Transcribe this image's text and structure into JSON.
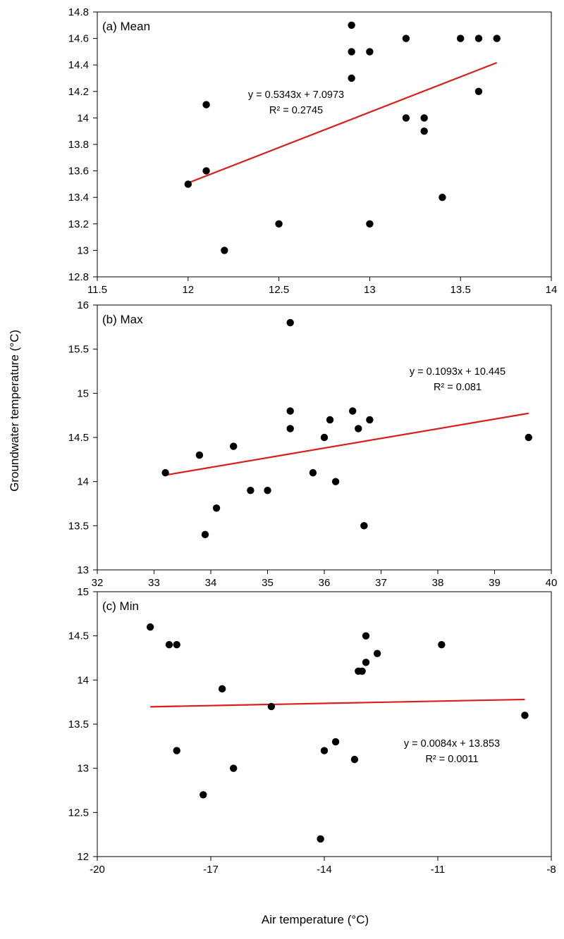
{
  "figure": {
    "ylabel": "Groundwater temperature (°C)",
    "xlabel": "Air temperature (°C)"
  },
  "colors": {
    "points": "#000000",
    "trendline": "#d81e1e",
    "axes": "#000000"
  },
  "chart_data": [
    {
      "type": "scatter",
      "panel_label": "(a) Mean",
      "xlim": [
        11.5,
        14
      ],
      "ylim": [
        12.8,
        14.8
      ],
      "x_ticks": [
        11.5,
        12,
        12.5,
        13,
        13.5,
        14
      ],
      "x_tick_labels": [
        "11.5",
        "12",
        "12.5",
        "13",
        "13.5",
        "14"
      ],
      "y_ticks": [
        12.8,
        13,
        13.2,
        13.4,
        13.6,
        13.8,
        14,
        14.2,
        14.4,
        14.6,
        14.8
      ],
      "y_tick_labels": [
        "12.8",
        "13",
        "13.2",
        "13.4",
        "13.6",
        "13.8",
        "14",
        "14.2",
        "14.4",
        "14.6",
        "14.8"
      ],
      "grid": false,
      "points": [
        [
          12.0,
          13.5
        ],
        [
          12.1,
          14.1
        ],
        [
          12.1,
          13.6
        ],
        [
          12.2,
          13.0
        ],
        [
          12.5,
          13.2
        ],
        [
          12.9,
          14.7
        ],
        [
          12.9,
          14.5
        ],
        [
          12.9,
          14.3
        ],
        [
          13.0,
          14.5
        ],
        [
          13.0,
          13.2
        ],
        [
          13.2,
          14.6
        ],
        [
          13.2,
          14.0
        ],
        [
          13.3,
          14.0
        ],
        [
          13.3,
          13.9
        ],
        [
          13.4,
          13.4
        ],
        [
          13.5,
          14.6
        ],
        [
          13.6,
          14.6
        ],
        [
          13.6,
          14.2
        ],
        [
          13.7,
          14.6
        ]
      ],
      "trendline": {
        "slope": 0.5343,
        "intercept": 7.0973,
        "x_range": [
          12.0,
          13.7
        ]
      },
      "equation": "y = 0.5343x + 7.0973",
      "r_squared": "R² = 0.2745"
    },
    {
      "type": "scatter",
      "panel_label": "(b) Max",
      "xlim": [
        32,
        40
      ],
      "ylim": [
        13,
        16
      ],
      "x_ticks": [
        32,
        33,
        34,
        35,
        36,
        37,
        38,
        39,
        40
      ],
      "x_tick_labels": [
        "32",
        "33",
        "34",
        "35",
        "36",
        "37",
        "38",
        "39",
        "40"
      ],
      "y_ticks": [
        13,
        13.5,
        14,
        14.5,
        15,
        15.5,
        16
      ],
      "y_tick_labels": [
        "13",
        "13.5",
        "14",
        "14.5",
        "15",
        "15.5",
        "16"
      ],
      "grid": false,
      "points": [
        [
          33.2,
          14.1
        ],
        [
          33.8,
          14.3
        ],
        [
          33.9,
          13.4
        ],
        [
          34.1,
          13.7
        ],
        [
          34.4,
          14.4
        ],
        [
          34.7,
          13.9
        ],
        [
          35.0,
          13.9
        ],
        [
          35.4,
          15.8
        ],
        [
          35.4,
          14.8
        ],
        [
          35.4,
          14.6
        ],
        [
          35.8,
          14.1
        ],
        [
          36.0,
          14.5
        ],
        [
          36.1,
          14.7
        ],
        [
          36.2,
          14.0
        ],
        [
          36.5,
          14.8
        ],
        [
          36.6,
          14.6
        ],
        [
          36.7,
          13.5
        ],
        [
          36.8,
          14.7
        ],
        [
          39.6,
          14.5
        ]
      ],
      "trendline": {
        "slope": 0.1093,
        "intercept": 10.445,
        "x_range": [
          33.2,
          39.6
        ]
      },
      "equation": "y = 0.1093x + 10.445",
      "r_squared": "R² = 0.081"
    },
    {
      "type": "scatter",
      "panel_label": "(c) Min",
      "xlim": [
        -20,
        -8
      ],
      "ylim": [
        12,
        15
      ],
      "x_ticks": [
        -20,
        -17,
        -14,
        -11,
        -8
      ],
      "x_tick_labels": [
        "-20",
        "-17",
        "-14",
        "-11",
        "-8"
      ],
      "y_ticks": [
        12,
        12.5,
        13,
        13.5,
        14,
        14.5,
        15
      ],
      "y_tick_labels": [
        "12",
        "12.5",
        "13",
        "13.5",
        "14",
        "14.5",
        "15"
      ],
      "grid": false,
      "points": [
        [
          -18.6,
          14.6
        ],
        [
          -18.1,
          14.4
        ],
        [
          -17.9,
          14.4
        ],
        [
          -17.9,
          13.2
        ],
        [
          -17.2,
          12.7
        ],
        [
          -16.7,
          13.9
        ],
        [
          -16.4,
          13.0
        ],
        [
          -15.4,
          13.7
        ],
        [
          -14.1,
          12.2
        ],
        [
          -14.0,
          13.2
        ],
        [
          -13.7,
          13.3
        ],
        [
          -13.2,
          13.1
        ],
        [
          -13.1,
          14.1
        ],
        [
          -13.0,
          14.1
        ],
        [
          -12.9,
          14.5
        ],
        [
          -12.9,
          14.2
        ],
        [
          -12.6,
          14.3
        ],
        [
          -10.9,
          14.4
        ],
        [
          -8.7,
          13.6
        ]
      ],
      "trendline": {
        "slope": 0.0084,
        "intercept": 13.853,
        "x_range": [
          -18.6,
          -8.7
        ]
      },
      "equation": "y = 0.0084x + 13.853",
      "r_squared": "R² = 0.0011"
    }
  ]
}
